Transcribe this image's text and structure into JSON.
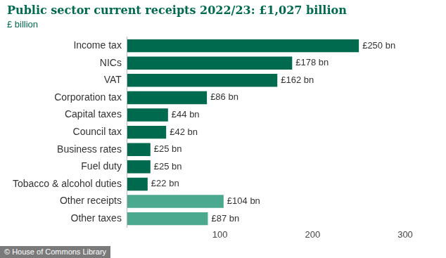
{
  "chart_data": {
    "type": "bar",
    "orientation": "horizontal",
    "title": "Public sector current receipts 2022/23: £1,027 billion",
    "subtitle": "£ billion",
    "source": "© House of Commons Library",
    "categories": [
      "Income tax",
      "NICs",
      "VAT",
      "Corporation tax",
      "Capital taxes",
      "Council tax",
      "Business rates",
      "Fuel duty",
      "Tobacco & alcohol duties",
      "Other receipts",
      "Other taxes"
    ],
    "values": [
      250,
      178,
      162,
      86,
      44,
      42,
      25,
      25,
      22,
      104,
      87
    ],
    "value_labels": [
      "£250 bn",
      "£178 bn",
      "£162 bn",
      "£86 bn",
      "£44 bn",
      "£42 bn",
      "£25 bn",
      "£25 bn",
      "£22 bn",
      "£104 bn",
      "£87 bn"
    ],
    "colors": [
      "#006a4e",
      "#006a4e",
      "#006a4e",
      "#006a4e",
      "#006a4e",
      "#006a4e",
      "#006a4e",
      "#006a4e",
      "#006a4e",
      "#4aa98f",
      "#4aa98f"
    ],
    "xlim": [
      0,
      300
    ],
    "xticks": [
      100,
      200,
      300
    ],
    "grid": false,
    "data_labels": true
  }
}
